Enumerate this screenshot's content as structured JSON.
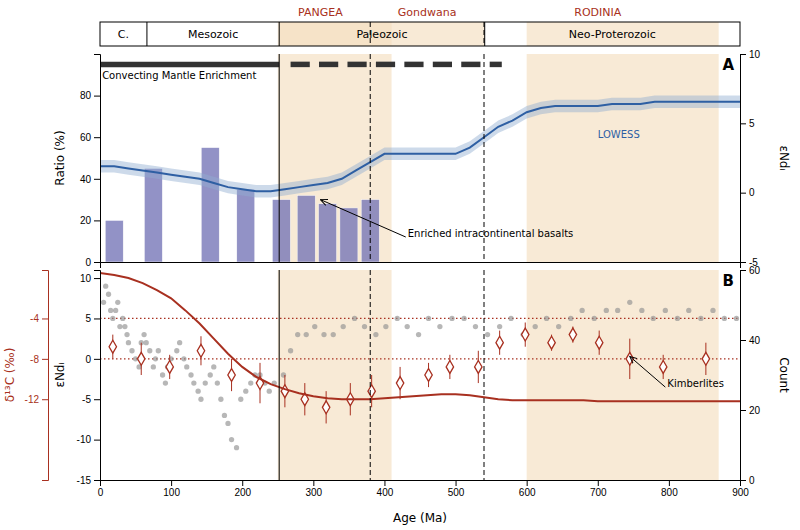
{
  "chart_data": [
    {
      "type": "timeline",
      "xlim": [
        0,
        900
      ],
      "tick_labels": false,
      "categories": [
        "C.",
        "Mesozoic",
        "Paleozoic",
        "Neo-Proterozoic"
      ],
      "bounds": [
        0,
        66,
        252,
        541,
        900
      ],
      "spans": [
        {
          "x0": 252,
          "x1": 541,
          "color": "#f5dfc0"
        },
        {
          "x0": 250,
          "x1": 410,
          "color": "#f5dfc0"
        },
        {
          "x0": 600,
          "x1": 870,
          "color": "#f5dfc0"
        }
      ],
      "vlines": [
        {
          "x": 380,
          "line_style": "dashed"
        },
        {
          "x": 540,
          "line_style": "dashed"
        }
      ],
      "annotations": [
        {
          "text": "PANGEA",
          "x": 310,
          "color": "#a83020"
        },
        {
          "text": "Gondwana",
          "x": 460,
          "color": "#a83020"
        },
        {
          "text": "RODINIA",
          "x": 700,
          "color": "#a83020"
        }
      ]
    },
    {
      "type": "bar",
      "title": "A",
      "ylabel": "Ratio (%)",
      "y2label": "εNdᵢ",
      "xlim": [
        0,
        900
      ],
      "ylim": [
        0,
        100
      ],
      "yticks": [
        0,
        20,
        40,
        60,
        80
      ],
      "y2lim": [
        -5,
        10
      ],
      "y2ticks": [
        -5,
        0,
        5,
        10
      ],
      "tick_labels": "y",
      "spans": [
        {
          "x0": 250,
          "x1": 410,
          "color": "#f5dfc0"
        },
        {
          "x0": 600,
          "x1": 870,
          "color": "#f5dfc0"
        }
      ],
      "vlines": [
        {
          "x": 252,
          "line_style": "solid"
        },
        {
          "x": 380,
          "line_style": "dashed"
        },
        {
          "x": 540,
          "line_style": "dashed"
        }
      ],
      "series": [
        {
          "type": "bar",
          "x": [
            20,
            75,
            155,
            205,
            255,
            290,
            320,
            350,
            380
          ],
          "values": [
            20,
            45,
            55,
            35,
            30,
            32,
            28,
            26,
            30
          ],
          "color": "#7878b8"
        },
        {
          "type": "band",
          "x": [
            0,
            20,
            40,
            60,
            80,
            100,
            120,
            140,
            160,
            180,
            200,
            220,
            240,
            260,
            280,
            300,
            320,
            340,
            360,
            380,
            400,
            420,
            440,
            460,
            480,
            500,
            520,
            540,
            560,
            580,
            600,
            620,
            640,
            660,
            680,
            700,
            720,
            740,
            760,
            780,
            800,
            820,
            840,
            860,
            880,
            900
          ],
          "upper": [
            49,
            49,
            48,
            47,
            46,
            45,
            44,
            43,
            41,
            39,
            38,
            37,
            37,
            38,
            39,
            40,
            41,
            43,
            47,
            51,
            55,
            55,
            55,
            55,
            55,
            55,
            58,
            63,
            68,
            71,
            75,
            77,
            78,
            78,
            78,
            78,
            79,
            79,
            79,
            80,
            80,
            80,
            80,
            80,
            80,
            80
          ],
          "lower": [
            43,
            43,
            42,
            41,
            40,
            39,
            38,
            37,
            35,
            33,
            32,
            31,
            31,
            32,
            33,
            34,
            35,
            37,
            41,
            45,
            49,
            49,
            49,
            49,
            49,
            49,
            52,
            57,
            62,
            65,
            69,
            71,
            72,
            72,
            72,
            72,
            73,
            73,
            73,
            74,
            74,
            74,
            74,
            74,
            74,
            74
          ],
          "color": "#90aed0"
        },
        {
          "type": "line",
          "x": [
            0,
            20,
            40,
            60,
            80,
            100,
            120,
            140,
            160,
            180,
            200,
            220,
            240,
            260,
            280,
            300,
            320,
            340,
            360,
            380,
            400,
            420,
            440,
            460,
            480,
            500,
            520,
            540,
            560,
            580,
            600,
            620,
            640,
            660,
            680,
            700,
            720,
            740,
            760,
            780,
            800,
            820,
            840,
            860,
            880,
            900
          ],
          "values": [
            46,
            46,
            45,
            44,
            43,
            42,
            41,
            40,
            38,
            36,
            35,
            34,
            34,
            35,
            36,
            37,
            38,
            40,
            44,
            48,
            52,
            52,
            52,
            52,
            52,
            52,
            55,
            60,
            65,
            68,
            72,
            74,
            75,
            75,
            75,
            75,
            76,
            76,
            76,
            77,
            77,
            77,
            77,
            77,
            77,
            77
          ],
          "color": "#2e5fa3"
        },
        {
          "type": "segments",
          "y": 95,
          "segments": [
            [
              0,
              252
            ],
            [
              268,
              295
            ],
            [
              308,
              335
            ],
            [
              348,
              375
            ],
            [
              388,
              415
            ],
            [
              428,
              455
            ],
            [
              468,
              495
            ],
            [
              508,
              535
            ],
            [
              548,
              565
            ]
          ],
          "color": "#333333"
        }
      ],
      "annotations": [
        {
          "text": "Convecting Mantle Enrichment",
          "x": 3,
          "y": 91.5
        },
        {
          "text": "LOWESS",
          "x": 700,
          "y": 63,
          "color": "#2e5fa3"
        },
        {
          "text": "Enriched intracontinental basalts",
          "x": 430,
          "y": 12,
          "arrow_x": 310,
          "arrow_y": 30
        }
      ]
    },
    {
      "type": "scatter",
      "title": "B",
      "xlabel": "Age (Ma)",
      "ylabel": "εNdᵢ",
      "y2label": "Count",
      "y3label": "δ¹³C (‰)",
      "xlim": [
        0,
        900
      ],
      "xticks": [
        0,
        100,
        200,
        300,
        400,
        500,
        600,
        700,
        800,
        900
      ],
      "ylim": [
        -15,
        11
      ],
      "yticks": [
        -15,
        -10,
        -5,
        0,
        5,
        10
      ],
      "y2lim": [
        0,
        60
      ],
      "y2ticks": [
        0,
        20,
        40,
        60
      ],
      "y3lim": [
        -20,
        0.8
      ],
      "y3ticks": [
        -4,
        -8,
        -12
      ],
      "spans": [
        {
          "x0": 250,
          "x1": 410,
          "color": "#f5dfc0"
        },
        {
          "x0": 600,
          "x1": 870,
          "color": "#f5dfc0"
        }
      ],
      "vlines": [
        {
          "x": 252,
          "line_style": "solid"
        },
        {
          "x": 380,
          "line_style": "dashed"
        },
        {
          "x": 540,
          "line_style": "dashed"
        }
      ],
      "hlines": [
        {
          "y": 5,
          "color": "#a83020",
          "line_style": "dotted"
        },
        {
          "y": 0,
          "color": "#a83020",
          "line_style": "dotted"
        }
      ],
      "series": [
        {
          "type": "scatter",
          "marker": "circle",
          "color": "#909090",
          "x": [
            5,
            8,
            12,
            15,
            18,
            22,
            25,
            28,
            32,
            35,
            38,
            40,
            45,
            50,
            55,
            58,
            62,
            65,
            70,
            75,
            78,
            82,
            88,
            92,
            95,
            100,
            108,
            112,
            118,
            122,
            128,
            132,
            138,
            142,
            148,
            155,
            160,
            165,
            170,
            175,
            180,
            185,
            192,
            198,
            205,
            212,
            218,
            225,
            232,
            238,
            245,
            258,
            268,
            278,
            290,
            302,
            315,
            328,
            342,
            358,
            372,
            388,
            402,
            418,
            432,
            448,
            462,
            478,
            495,
            512,
            528,
            545,
            562,
            578,
            595,
            612,
            628,
            645,
            662,
            678,
            695,
            712,
            728,
            745,
            762,
            778,
            795,
            812,
            828,
            845,
            862,
            878,
            895
          ],
          "values": [
            7,
            9,
            8,
            6,
            5,
            6,
            7,
            4,
            5,
            4,
            3,
            2,
            1,
            0,
            -1,
            2,
            3,
            2,
            1,
            -1,
            0,
            1,
            -2,
            -3,
            -1,
            0,
            1,
            2,
            0,
            -1,
            -2,
            -3,
            -4,
            -5,
            -3,
            -2,
            -1,
            -3,
            -5,
            -7,
            -8,
            -10,
            -11,
            -5,
            -4,
            -3,
            -2,
            -2,
            -3,
            -4,
            -3,
            -2,
            1,
            3,
            3,
            4,
            3,
            3,
            4,
            5,
            4,
            3,
            4,
            5,
            4,
            3,
            5,
            4,
            5,
            5,
            4,
            3,
            4,
            5,
            3,
            4,
            5,
            4,
            5,
            6,
            5,
            6,
            6,
            7,
            6,
            5,
            6,
            5,
            6,
            5,
            6,
            5,
            5
          ]
        },
        {
          "type": "scatter",
          "marker": "diamond",
          "color": "#a83020",
          "x": [
            18,
            58,
            98,
            142,
            185,
            225,
            260,
            288,
            318,
            352,
            382,
            422,
            462,
            492,
            532,
            562,
            598,
            635,
            665,
            702,
            745,
            792,
            852
          ],
          "values": [
            1.5,
            0,
            -1,
            1,
            -2,
            -3,
            -4,
            -5,
            -6,
            -5,
            -4,
            -3,
            -2,
            -1,
            -1,
            2,
            3,
            2,
            3,
            2,
            0,
            -1,
            0
          ],
          "error": [
            1.5,
            2,
            1.5,
            1.8,
            2,
            2.5,
            2,
            2,
            2,
            2,
            2,
            2,
            1.5,
            1.5,
            2,
            1.5,
            1.5,
            1,
            1,
            1.5,
            2.5,
            1.5,
            2
          ]
        },
        {
          "type": "line",
          "axis": "y3",
          "color": "#a83020",
          "x": [
            0,
            20,
            40,
            60,
            80,
            100,
            120,
            140,
            160,
            180,
            200,
            220,
            240,
            260,
            280,
            300,
            320,
            340,
            360,
            380,
            400,
            420,
            440,
            460,
            480,
            500,
            520,
            540,
            560,
            580,
            600,
            620,
            640,
            660,
            680,
            700,
            720,
            740,
            760,
            780,
            800,
            820,
            840,
            860,
            880,
            900
          ],
          "values": [
            0.5,
            0.3,
            0.0,
            -0.5,
            -1.2,
            -2.0,
            -3.2,
            -4.5,
            -6.0,
            -7.5,
            -8.8,
            -9.8,
            -10.5,
            -11.0,
            -11.4,
            -11.7,
            -11.9,
            -12.0,
            -12.0,
            -12.0,
            -11.9,
            -11.8,
            -11.7,
            -11.6,
            -11.5,
            -11.5,
            -11.6,
            -11.8,
            -12.0,
            -12.1,
            -12.1,
            -12.1,
            -12.1,
            -12.1,
            -12.1,
            -12.2,
            -12.2,
            -12.2,
            -12.2,
            -12.2,
            -12.2,
            -12.2,
            -12.2,
            -12.2,
            -12.2,
            -12.2
          ]
        }
      ],
      "annotations": [
        {
          "text": "Kimberlites",
          "x": 795,
          "y": -3.5,
          "arrow_x": 745,
          "arrow_y": 0.3
        }
      ]
    }
  ]
}
